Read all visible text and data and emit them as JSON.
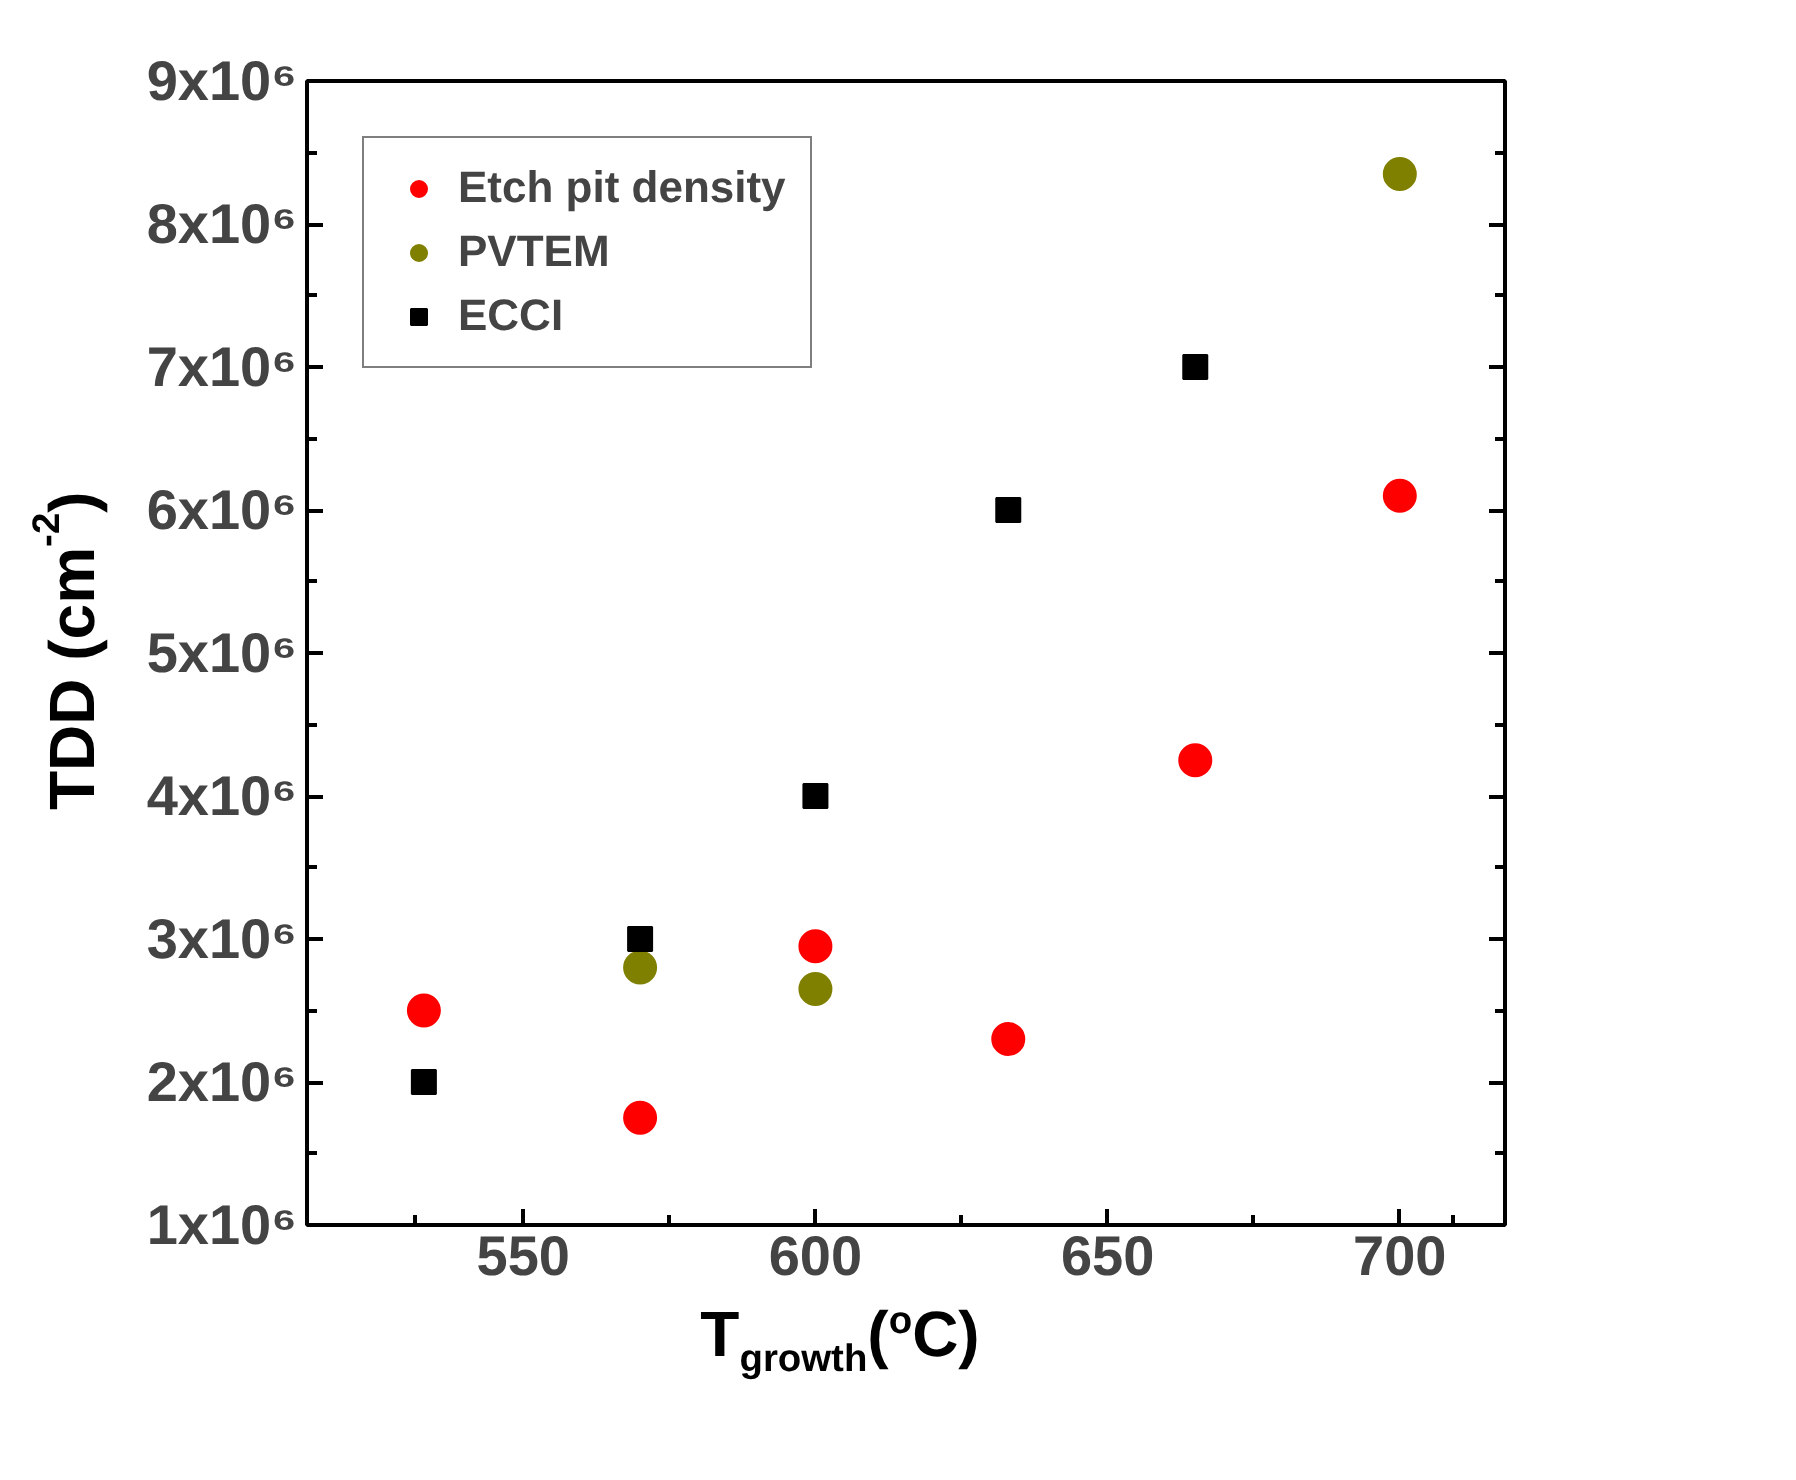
{
  "chart_data": {
    "type": "scatter",
    "xlabel": "T$_{growth}$($^{o}$C)",
    "ylabel": "TDD (cm$^{-2}$)",
    "xlim": [
      513,
      718
    ],
    "xticks": [
      550,
      600,
      650,
      700
    ],
    "ylim": [
      1000000,
      9000000
    ],
    "yticks": [
      {
        "value": 1000000,
        "label": "1x10⁶"
      },
      {
        "value": 2000000,
        "label": "2x10⁶"
      },
      {
        "value": 3000000,
        "label": "3x10⁶"
      },
      {
        "value": 4000000,
        "label": "4x10⁶"
      },
      {
        "value": 5000000,
        "label": "5x10⁶"
      },
      {
        "value": 6000000,
        "label": "6x10⁶"
      },
      {
        "value": 7000000,
        "label": "7x10⁶"
      },
      {
        "value": 8000000,
        "label": "8x10⁶"
      },
      {
        "value": 9000000,
        "label": "9x10⁶"
      }
    ],
    "grid": false,
    "legend": "top left",
    "series": [
      {
        "name": "Etch pit density",
        "color": "#ff0000",
        "marker": "circle",
        "x": [
          533,
          570,
          600,
          633,
          665,
          700
        ],
        "values": [
          2500000,
          1750000,
          2950000,
          2300000,
          4250000,
          6100000
        ]
      },
      {
        "name": "PVTEM",
        "color": "#808000",
        "marker": "circle",
        "x": [
          570,
          600,
          700
        ],
        "values": [
          2800000,
          2650000,
          8350000
        ]
      },
      {
        "name": "ECCI",
        "color": "#000000",
        "marker": "square",
        "x": [
          533,
          570,
          600,
          633,
          665
        ],
        "values": [
          2000000,
          3000000,
          4000000,
          6000000,
          7000000
        ]
      }
    ]
  }
}
